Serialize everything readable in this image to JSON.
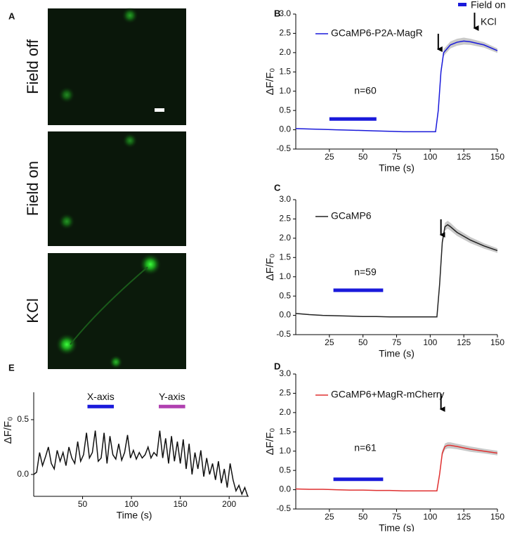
{
  "panels": [
    {
      "label": "A",
      "images": [
        "Field off",
        "Field on",
        "KCl"
      ]
    }
  ],
  "chart_data": [
    {
      "type": "line",
      "panel": "B",
      "y_label": "ΔF/F₀",
      "x_label": "Time (s)",
      "annotation": "n=60",
      "xlim": [
        0,
        150
      ],
      "xticks": [
        25,
        50,
        75,
        100,
        125,
        150
      ],
      "ylim": [
        -0.5,
        3.0
      ],
      "yticks": [
        -0.5,
        {
          "value": 0,
          "label": "0.0"
        },
        0.5,
        {
          "value": 1,
          "label": "1.0"
        },
        1.5,
        {
          "value": 2,
          "label": "2.0"
        },
        2.5,
        {
          "value": 3,
          "label": "3.0"
        }
      ],
      "field_bar": {
        "x": [
          25,
          60
        ],
        "y": 0.28,
        "color": "#1a1adb"
      },
      "arrows": [
        106,
        133
      ],
      "legend_extra": [
        "Field on",
        "KCl"
      ],
      "series": [
        {
          "name": "GCaMP6-P2A-MagR",
          "color": "#1a1adb",
          "x": [
            0,
            10,
            20,
            30,
            40,
            50,
            60,
            70,
            80,
            90,
            100,
            104,
            106,
            108,
            110,
            115,
            120,
            125,
            130,
            140,
            150
          ],
          "values": [
            0.03,
            0.02,
            0.01,
            0,
            -0.01,
            -0.02,
            -0.03,
            -0.04,
            -0.05,
            -0.05,
            -0.05,
            -0.05,
            0.5,
            1.5,
            2.0,
            2.2,
            2.27,
            2.3,
            2.28,
            2.2,
            2.05
          ],
          "errors": [
            0.01,
            0.01,
            0.01,
            0.01,
            0.01,
            0.01,
            0.01,
            0.01,
            0.01,
            0.01,
            0.01,
            0.01,
            0.05,
            0.08,
            0.09,
            0.09,
            0.09,
            0.09,
            0.08,
            0.07,
            0.06
          ]
        }
      ]
    },
    {
      "type": "line",
      "panel": "C",
      "y_label": "ΔF/F₀",
      "x_label": "Time (s)",
      "annotation": "n=59",
      "xlim": [
        0,
        150
      ],
      "xticks": [
        25,
        50,
        75,
        100,
        125,
        150
      ],
      "ylim": [
        -0.5,
        3.0
      ],
      "yticks": [
        -0.5,
        {
          "value": 0,
          "label": "0.0"
        },
        0.5,
        {
          "value": 1,
          "label": "1.0"
        },
        1.5,
        {
          "value": 2,
          "label": "2.0"
        },
        2.5,
        {
          "value": 3,
          "label": "3.0"
        }
      ],
      "field_bar": {
        "x": [
          28,
          65
        ],
        "y": 0.65,
        "color": "#1a1adb"
      },
      "arrows": [
        108
      ],
      "series": [
        {
          "name": "GCaMP6",
          "color": "#222222",
          "x": [
            0,
            10,
            20,
            30,
            40,
            50,
            60,
            70,
            80,
            90,
            100,
            105,
            107,
            109,
            111,
            113,
            115,
            120,
            130,
            140,
            150
          ],
          "values": [
            0.05,
            0.02,
            0,
            -0.01,
            -0.02,
            -0.03,
            -0.03,
            -0.04,
            -0.04,
            -0.04,
            -0.04,
            -0.04,
            0.8,
            1.9,
            2.3,
            2.35,
            2.3,
            2.15,
            1.95,
            1.8,
            1.68
          ],
          "errors": [
            0.01,
            0.01,
            0.01,
            0.01,
            0.01,
            0.01,
            0.01,
            0.01,
            0.01,
            0.01,
            0.01,
            0.01,
            0.08,
            0.1,
            0.1,
            0.1,
            0.1,
            0.09,
            0.08,
            0.07,
            0.06
          ]
        }
      ]
    },
    {
      "type": "line",
      "panel": "D",
      "y_label": "ΔF/F₀",
      "x_label": "Time (s)",
      "annotation": "n=61",
      "xlim": [
        0,
        150
      ],
      "xticks": [
        25,
        50,
        75,
        100,
        125,
        150
      ],
      "ylim": [
        -0.5,
        3.0
      ],
      "yticks": [
        -0.5,
        {
          "value": 0,
          "label": "0.0"
        },
        0.5,
        {
          "value": 1,
          "label": "1.0"
        },
        1.5,
        {
          "value": 2,
          "label": "2.0"
        },
        2.5,
        {
          "value": 3,
          "label": "3.0"
        }
      ],
      "field_bar": {
        "x": [
          28,
          65
        ],
        "y": 0.27,
        "color": "#1a1adb"
      },
      "arrows": [
        108
      ],
      "series": [
        {
          "name": "GCaMP6+MagR-mCherry",
          "color": "#e03030",
          "x": [
            0,
            10,
            20,
            30,
            40,
            50,
            60,
            70,
            80,
            90,
            100,
            105,
            107,
            109,
            111,
            113,
            115,
            120,
            130,
            140,
            150
          ],
          "values": [
            0.02,
            0.01,
            0.01,
            0,
            -0.01,
            -0.01,
            -0.02,
            -0.02,
            -0.03,
            -0.03,
            -0.03,
            -0.03,
            0.4,
            0.95,
            1.12,
            1.15,
            1.15,
            1.12,
            1.05,
            1.0,
            0.95
          ],
          "errors": [
            0.01,
            0.01,
            0.01,
            0.01,
            0.01,
            0.01,
            0.01,
            0.01,
            0.01,
            0.01,
            0.01,
            0.01,
            0.05,
            0.07,
            0.08,
            0.08,
            0.08,
            0.07,
            0.07,
            0.06,
            0.06
          ]
        }
      ]
    },
    {
      "type": "line",
      "panel": "E",
      "y_label": "ΔF/F₀",
      "x_label": "Time (s)",
      "xlim": [
        0,
        220
      ],
      "xticks": [
        50,
        100,
        150,
        200
      ],
      "ylim": [
        -0.2,
        0.75
      ],
      "yticks": [
        {
          "value": 0,
          "label": "0.0"
        },
        0.5
      ],
      "bars": [
        {
          "label": "X-axis",
          "x": [
            55,
            82
          ],
          "y": 0.62,
          "color": "#1a1adb"
        },
        {
          "label": "Y-axis",
          "x": [
            128,
            155
          ],
          "y": 0.62,
          "color": "#b040b0"
        }
      ],
      "series": [
        {
          "name": null,
          "color": "#111111",
          "x": [
            0,
            3,
            6,
            9,
            12,
            15,
            18,
            21,
            24,
            27,
            30,
            33,
            36,
            39,
            42,
            45,
            48,
            51,
            54,
            57,
            60,
            63,
            66,
            69,
            72,
            75,
            78,
            81,
            84,
            87,
            90,
            93,
            96,
            99,
            102,
            105,
            108,
            111,
            114,
            117,
            120,
            123,
            126,
            129,
            132,
            135,
            138,
            141,
            144,
            147,
            150,
            153,
            156,
            159,
            162,
            165,
            168,
            171,
            174,
            177,
            180,
            183,
            186,
            189,
            192,
            195,
            198,
            201,
            204,
            207,
            210,
            213,
            216,
            219
          ],
          "values": [
            0,
            0.02,
            0.2,
            0.08,
            0.16,
            0.25,
            0.1,
            0.05,
            0.22,
            0.12,
            0.2,
            0.08,
            0.25,
            0.15,
            0.1,
            0.3,
            0.12,
            0.18,
            0.38,
            0.15,
            0.2,
            0.4,
            0.12,
            0.15,
            0.38,
            0.1,
            0.35,
            0.18,
            0.14,
            0.28,
            0.13,
            0.2,
            0.36,
            0.15,
            0.22,
            0.14,
            0.2,
            0.15,
            0.18,
            0.25,
            0.15,
            0.2,
            0.17,
            0.4,
            0.15,
            0.33,
            0.1,
            0.35,
            0.12,
            0.3,
            0.1,
            0.32,
            0.05,
            0.28,
            0.0,
            0.2,
            0.05,
            0.22,
            -0.02,
            0.15,
            0.0,
            0.1,
            -0.05,
            0.12,
            -0.08,
            0.05,
            -0.12,
            0.1,
            -0.05,
            -0.15,
            -0.1,
            -0.18,
            -0.12,
            -0.2
          ]
        }
      ]
    }
  ]
}
